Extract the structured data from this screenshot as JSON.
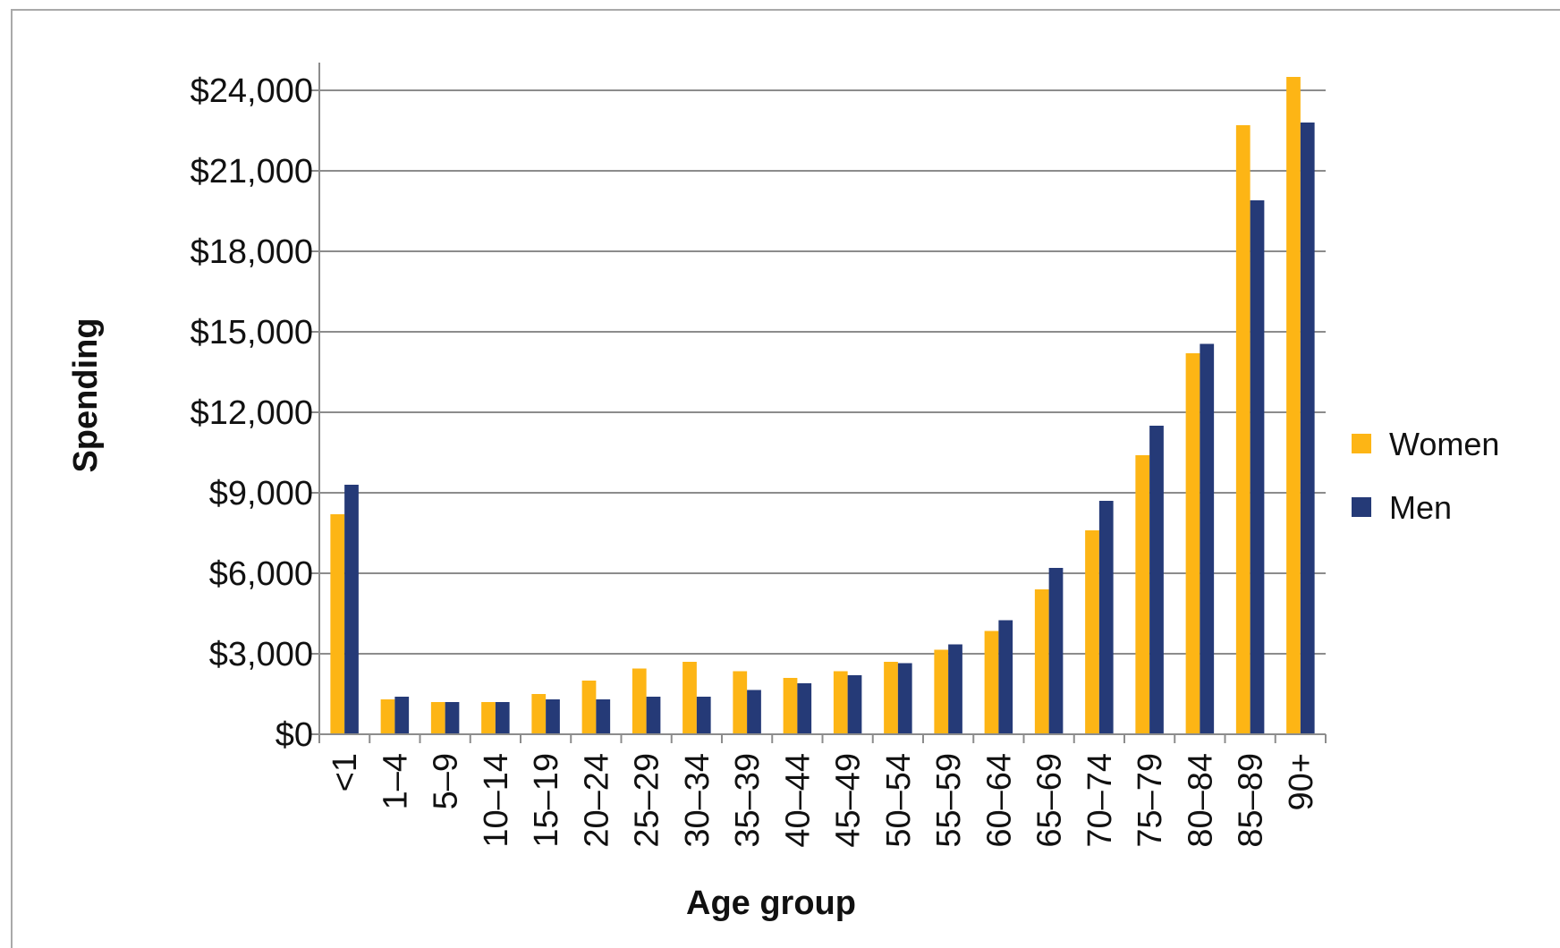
{
  "chart_data": {
    "type": "bar",
    "title": "",
    "xlabel": "Age group",
    "ylabel": "Spending",
    "categories": [
      "<1",
      "1–4",
      "5–9",
      "10–14",
      "15–19",
      "20–24",
      "25–29",
      "30–34",
      "35–39",
      "40–44",
      "45–49",
      "50–54",
      "55–59",
      "60–64",
      "65–69",
      "70–74",
      "75–79",
      "80–84",
      "85–89",
      "90+"
    ],
    "series": [
      {
        "name": "Women",
        "color": "#FDB515",
        "values": [
          8200,
          1300,
          1200,
          1200,
          1500,
          2000,
          2450,
          2700,
          2350,
          2100,
          2350,
          2700,
          3150,
          3850,
          5400,
          7600,
          10400,
          14200,
          22700,
          24500
        ]
      },
      {
        "name": "Men",
        "color": "#253A77",
        "values": [
          9300,
          1400,
          1200,
          1200,
          1300,
          1300,
          1400,
          1400,
          1650,
          1900,
          2200,
          2650,
          3350,
          4250,
          6200,
          8700,
          11500,
          14550,
          19900,
          22800
        ]
      }
    ],
    "ylim": [
      0,
      24000
    ],
    "yticks": [
      0,
      3000,
      6000,
      9000,
      12000,
      15000,
      18000,
      21000,
      24000
    ],
    "ytick_labels": [
      "$0",
      "$3,000",
      "$6,000",
      "$9,000",
      "$12,000",
      "$15,000",
      "$18,000",
      "$21,000",
      "$24,000"
    ],
    "grid": true,
    "legend_position": "right"
  }
}
